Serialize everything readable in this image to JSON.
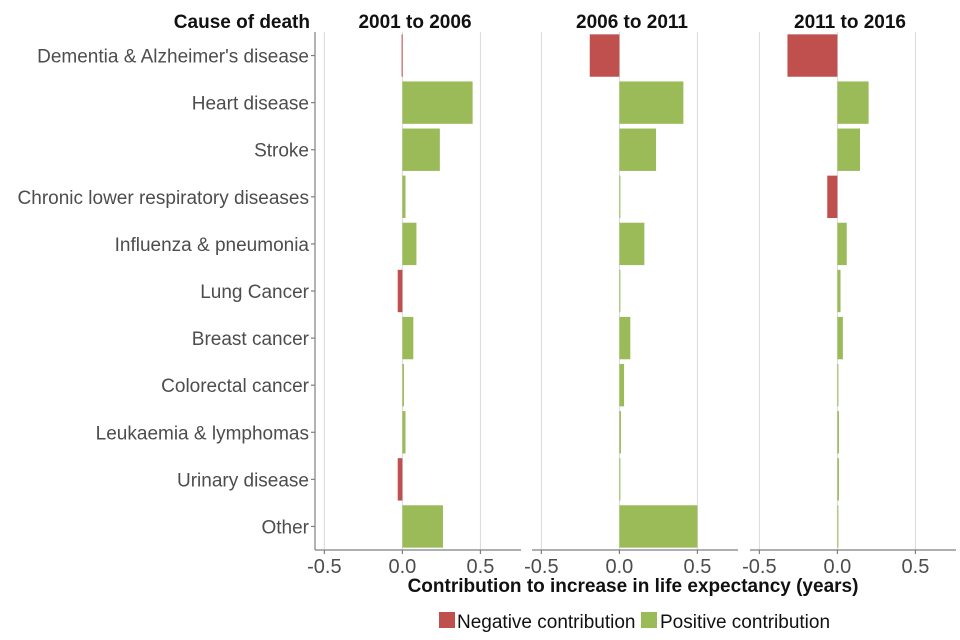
{
  "chart_data": {
    "type": "bar",
    "orientation": "horizontal",
    "facet": "columns",
    "ytitle": "Cause of death",
    "xlabel": "Contribution to increase in life expectancy (years)",
    "xlim": [
      -0.56,
      0.76
    ],
    "xticks": [
      -0.5,
      0.0,
      0.5
    ],
    "xtick_labels": [
      "-0.5",
      "0.0",
      "0.5"
    ],
    "grid": "vertical",
    "categories": [
      "Dementia & Alzheimer's disease",
      "Heart disease",
      "Stroke",
      "Chronic lower respiratory diseases",
      "Influenza & pneumonia",
      "Lung Cancer",
      "Breast cancer",
      "Colorectal cancer",
      "Leukaemia & lymphomas",
      "Urinary disease",
      "Other"
    ],
    "panels": [
      {
        "title": "2001 to 2006",
        "values": [
          -0.005,
          0.45,
          0.24,
          0.02,
          0.09,
          -0.03,
          0.07,
          0.01,
          0.02,
          -0.03,
          0.26
        ]
      },
      {
        "title": "2006 to 2011",
        "values": [
          -0.19,
          0.41,
          0.235,
          0.004,
          0.16,
          0.004,
          0.07,
          0.03,
          0.01,
          0.002,
          0.5
        ]
      },
      {
        "title": "2011 to 2016",
        "values": [
          -0.32,
          0.2,
          0.145,
          -0.065,
          0.06,
          0.02,
          0.035,
          0.003,
          0.01,
          0.01,
          0.003
        ]
      }
    ],
    "legend": {
      "position": "bottom",
      "items": [
        {
          "label": "Negative contribution",
          "color": "#C0504D"
        },
        {
          "label": "Positive contribution",
          "color": "#9BBB59"
        }
      ]
    },
    "colors": {
      "negative": "#C0504D",
      "positive": "#9BBB59"
    }
  }
}
